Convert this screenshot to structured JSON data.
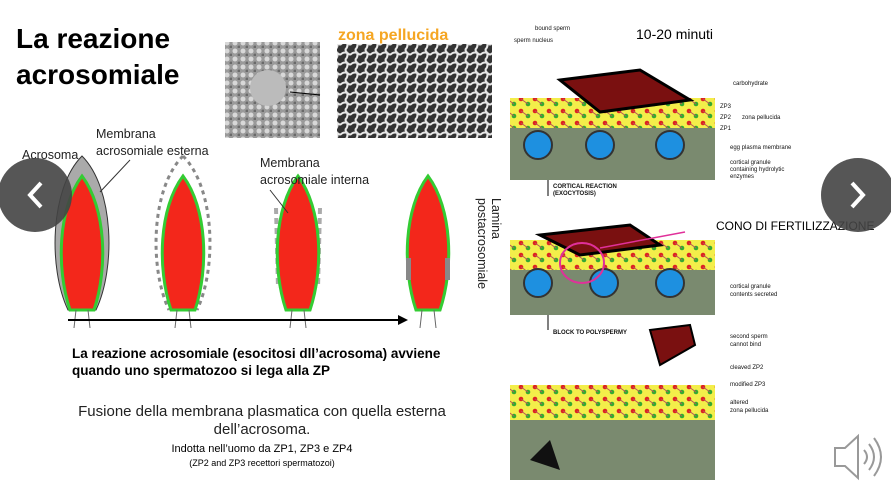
{
  "slide": {
    "title": [
      "La reazione",
      "acrosomiale"
    ],
    "zona_label": "zona pellucida",
    "time_label": "10-20 minuti",
    "sperm_labels": {
      "membrana_esterna": [
        "Membrana",
        "acrosomiale esterna"
      ],
      "acrosoma": "Acrosoma",
      "membrana_interna": [
        "Membrana",
        "acrosomiale interna"
      ],
      "lamina": [
        "Lamina",
        "postacrosomiale"
      ]
    },
    "diagram_labels": {
      "bound_sperm": "bound sperm",
      "sperm_nucleus": "sperm nucleus",
      "carbohydrate": "carbohydrate",
      "zp3": "ZP3",
      "zp2": "ZP2",
      "zp1": "ZP1",
      "zona": "zona pellucida",
      "egg_membrane": "egg plasma membrane",
      "cortical_granule": [
        "cortical granule",
        "containing hydrolytic",
        "enzymes"
      ],
      "cortical_reaction": [
        "CORTICAL REACTION",
        "(EXOCYTOSIS)"
      ],
      "contents_secreted": [
        "cortical granule",
        "contents secreted"
      ],
      "block": "BLOCK TO POLYSPERMY",
      "second_sperm": [
        "second sperm",
        "cannot bind"
      ],
      "cleaved_zp2": "cleaved ZP2",
      "modified_zp3": "modified ZP3",
      "altered_zona": [
        "altered",
        "zona pellucida"
      ]
    },
    "cono": "CONO DI FERTILIZZAZIONE",
    "bold_text": [
      "La reazione acrosomiale (esocitosi dll’acrosoma) avviene",
      "quando uno spermatozoo si lega alla ZP"
    ],
    "fusione": [
      "Fusione della membrana plasmatica con quella esterna",
      "dell’acrosoma."
    ],
    "indotta": "Indotta nell’uomo da ZP1, ZP3 e ZP4",
    "recettori": "(ZP2 and ZP3 recettori spermatozoi)"
  }
}
